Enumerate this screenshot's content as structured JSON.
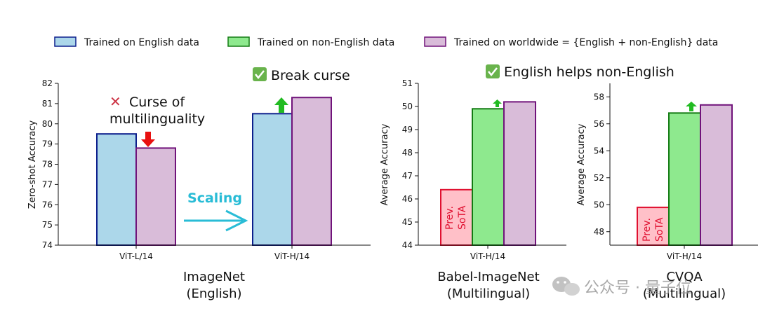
{
  "legend": {
    "english": "Trained on English data",
    "non_english": "Trained on non-English data",
    "worldwide": "Trained on worldwide = {English + non-English} data"
  },
  "colors": {
    "english_fill": "#acd7ea",
    "english_edge": "#0c1f8c",
    "non_english_fill": "#8ee98e",
    "non_english_edge": "#137a13",
    "worldwide_fill": "#d9bcd9",
    "worldwide_edge": "#70137a",
    "sota_fill": "#ffc0c8",
    "sota_edge": "#e01030",
    "up_arrow": "#22bb22",
    "down_arrow": "#e81010",
    "scaling": "#29bcd6"
  },
  "annotations": {
    "curse_mark": "✕",
    "curse_line1": "Curse of",
    "curse_line2": "multilinguality",
    "break_mark": "✅",
    "break_text": "Break curse",
    "helps_mark": "✅",
    "helps_text": "English helps non-English",
    "scaling": "Scaling"
  },
  "watermark": {
    "icon": "wechat-icon",
    "text": "公众号 · 量子位"
  },
  "chart_data": [
    {
      "type": "bar",
      "title": "",
      "xlabel_line1": "ImageNet",
      "xlabel_line2": "(English)",
      "ylabel": "Zero-shot Accuracy",
      "ylim": [
        74,
        82
      ],
      "yticks": [
        74,
        75,
        76,
        77,
        78,
        79,
        80,
        81,
        82
      ],
      "categories": [
        "ViT-L/14",
        "ViT-H/14"
      ],
      "series": [
        {
          "name": "Trained on English data",
          "values": [
            79.5,
            80.5
          ]
        },
        {
          "name": "Trained on worldwide = {English + non-English} data",
          "values": [
            78.8,
            81.3
          ]
        }
      ]
    },
    {
      "type": "bar",
      "title": "",
      "xlabel_line1": "Babel-ImageNet",
      "xlabel_line2": "(Multilingual)",
      "ylabel": "Average Accuracy",
      "ylim": [
        44,
        51
      ],
      "yticks": [
        44,
        45,
        46,
        47,
        48,
        49,
        50,
        51
      ],
      "categories": [
        "ViT-H/14"
      ],
      "sota_label_line1": "Prev.",
      "sota_label_line2": "SoTA",
      "bars": [
        {
          "series": "Prev. SoTA",
          "value": 46.4
        },
        {
          "series": "Trained on non-English data",
          "value": 49.9
        },
        {
          "series": "Trained on worldwide = {English + non-English} data",
          "value": 50.2
        }
      ]
    },
    {
      "type": "bar",
      "title": "",
      "xlabel_line1": "CVQA",
      "xlabel_line2": "(Multilingual)",
      "ylabel": "Average Accuracy",
      "ylim": [
        47,
        59
      ],
      "yticks": [
        48,
        50,
        52,
        54,
        56,
        58
      ],
      "categories": [
        "ViT-H/14"
      ],
      "sota_label_line1": "Prev.",
      "sota_label_line2": "SoTA",
      "bars": [
        {
          "series": "Prev. SoTA",
          "value": 49.8
        },
        {
          "series": "Trained on non-English data",
          "value": 56.8
        },
        {
          "series": "Trained on worldwide = {English + non-English} data",
          "value": 57.4
        }
      ]
    }
  ]
}
